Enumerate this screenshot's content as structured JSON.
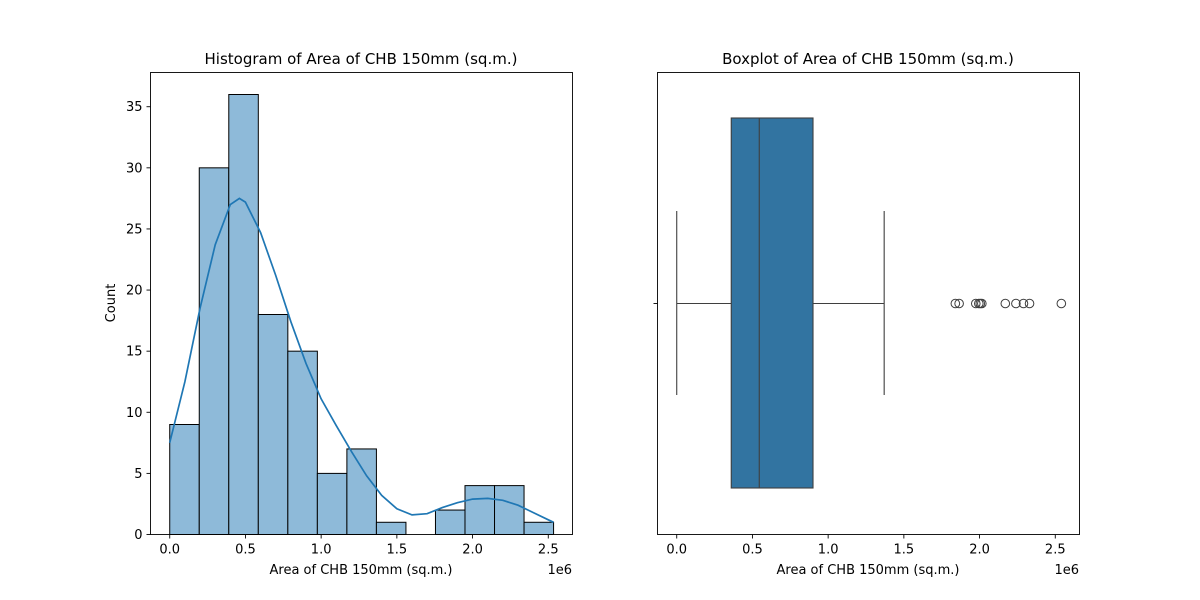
{
  "colors": {
    "hist_fill": "#8ebad9",
    "hist_stroke": "#000000",
    "kde_line": "#1f77b4",
    "box_fill": "#3274a1",
    "box_stroke": "#3f3f3f"
  },
  "chart_data": [
    {
      "type": "histogram",
      "title": "Histogram of Area of CHB 150mm (sq.m.)",
      "xlabel": "Area of CHB 150mm (sq.m.)",
      "ylabel": "Count",
      "x_offset_label": "1e6",
      "xlim": [
        -0.127,
        2.66
      ],
      "ylim": [
        0,
        37.8
      ],
      "xticks": [
        0.0,
        0.5,
        1.0,
        1.5,
        2.0,
        2.5
      ],
      "xtick_labels": [
        "0.0",
        "0.5",
        "1.0",
        "1.5",
        "2.0",
        "2.5"
      ],
      "yticks": [
        0,
        5,
        10,
        15,
        20,
        25,
        30,
        35
      ],
      "ytick_labels": [
        "0",
        "5",
        "10",
        "15",
        "20",
        "25",
        "30",
        "35"
      ],
      "bin_edges": [
        0.0,
        0.195,
        0.39,
        0.585,
        0.78,
        0.975,
        1.17,
        1.365,
        1.56,
        1.755,
        1.95,
        2.145,
        2.34,
        2.535
      ],
      "counts": [
        9,
        30,
        36,
        18,
        15,
        5,
        7,
        1,
        0,
        2,
        4,
        4,
        1
      ],
      "kde": {
        "x": [
          0.0,
          0.1,
          0.2,
          0.3,
          0.4,
          0.46,
          0.5,
          0.6,
          0.7,
          0.8,
          0.9,
          1.0,
          1.1,
          1.2,
          1.3,
          1.4,
          1.5,
          1.6,
          1.7,
          1.8,
          1.9,
          2.0,
          2.1,
          2.2,
          2.3,
          2.4,
          2.5,
          2.535
        ],
        "y": [
          7.5,
          12.5,
          18.5,
          23.7,
          27.0,
          27.5,
          27.2,
          24.7,
          21.2,
          17.4,
          14.0,
          11.1,
          8.9,
          6.8,
          4.8,
          3.2,
          2.1,
          1.6,
          1.7,
          2.2,
          2.6,
          2.9,
          2.95,
          2.8,
          2.4,
          1.8,
          1.2,
          1.0
        ]
      }
    },
    {
      "type": "boxplot",
      "title": "Boxplot of Area of CHB 150mm (sq.m.)",
      "xlabel": "Area of CHB 150mm (sq.m.)",
      "x_offset_label": "1e6",
      "xlim": [
        -0.127,
        2.66
      ],
      "xticks": [
        0.0,
        0.5,
        1.0,
        1.5,
        2.0,
        2.5
      ],
      "xtick_labels": [
        "0.0",
        "0.5",
        "1.0",
        "1.5",
        "2.0",
        "2.5"
      ],
      "whisker_low": 0.0,
      "q1": 0.36,
      "median": 0.545,
      "q3": 0.9,
      "whisker_high": 1.37,
      "outliers": [
        1.84,
        1.865,
        1.975,
        1.995,
        2.005,
        2.015,
        2.17,
        2.24,
        2.29,
        2.33,
        2.54
      ]
    }
  ]
}
